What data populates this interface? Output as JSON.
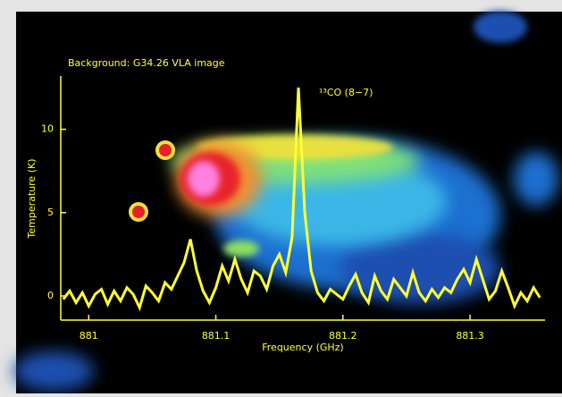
{
  "chart_data": {
    "type": "line",
    "title": "Background: G34.26 VLA image",
    "annotation": "¹³CO (8−7)",
    "x_label": "Frequency (GHz)",
    "y_label": "Temperature (K)",
    "x": [
      880.98,
      880.985,
      880.99,
      880.995,
      881.0,
      881.005,
      881.01,
      881.015,
      881.02,
      881.025,
      881.03,
      881.035,
      881.04,
      881.045,
      881.05,
      881.055,
      881.06,
      881.065,
      881.07,
      881.075,
      881.08,
      881.085,
      881.09,
      881.095,
      881.1,
      881.105,
      881.11,
      881.115,
      881.12,
      881.125,
      881.13,
      881.135,
      881.14,
      881.145,
      881.15,
      881.155,
      881.16,
      881.165,
      881.17,
      881.175,
      881.18,
      881.185,
      881.19,
      881.195,
      881.2,
      881.205,
      881.21,
      881.215,
      881.22,
      881.225,
      881.23,
      881.235,
      881.24,
      881.245,
      881.25,
      881.255,
      881.26,
      881.265,
      881.27,
      881.275,
      881.28,
      881.285,
      881.29,
      881.295,
      881.3,
      881.305,
      881.31,
      881.315,
      881.32,
      881.325,
      881.33,
      881.335,
      881.34,
      881.345,
      881.35,
      881.355
    ],
    "series": [
      {
        "color": "#ffff33",
        "values": [
          -0.2,
          0.3,
          -0.4,
          0.2,
          -0.6,
          0.1,
          0.4,
          -0.5,
          0.3,
          -0.3,
          0.5,
          0.1,
          -0.7,
          0.6,
          0.2,
          -0.3,
          0.8,
          0.4,
          1.2,
          2.0,
          3.4,
          1.5,
          0.3,
          -0.4,
          0.5,
          1.8,
          0.9,
          2.2,
          1.0,
          0.2,
          1.5,
          1.2,
          0.4,
          1.8,
          2.5,
          1.4,
          3.5,
          12.5,
          5.0,
          1.5,
          0.2,
          -0.3,
          0.4,
          0.1,
          -0.2,
          0.6,
          1.3,
          0.2,
          -0.4,
          1.2,
          0.3,
          -0.2,
          1.0,
          0.5,
          0.0,
          1.4,
          0.2,
          -0.3,
          0.4,
          -0.1,
          0.5,
          0.2,
          1.0,
          1.6,
          0.8,
          2.2,
          1.0,
          -0.2,
          0.3,
          1.5,
          0.5,
          -0.6,
          0.2,
          -0.3,
          0.5,
          -0.1
        ]
      }
    ],
    "xlim": [
      880.978,
      881.359
    ],
    "ylim": [
      -1.45,
      13.2
    ],
    "xticks": [
      881,
      881.1,
      881.2,
      881.3
    ],
    "yticks": [
      0,
      5,
      10
    ]
  }
}
